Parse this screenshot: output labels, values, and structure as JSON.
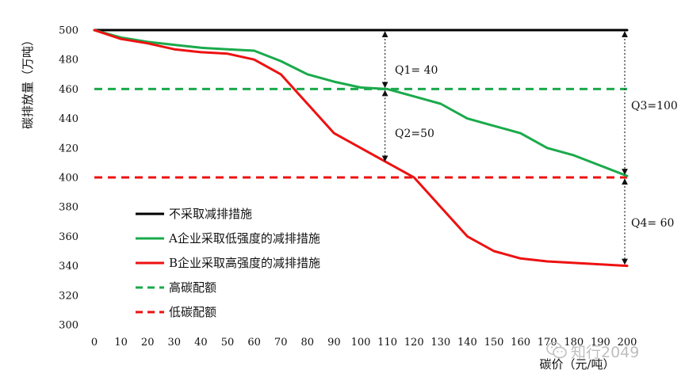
{
  "chart_data": {
    "type": "line",
    "xlabel": "碳价（元/吨）",
    "ylabel": "碳排放量（万吨）",
    "x": [
      0,
      10,
      20,
      30,
      40,
      50,
      60,
      70,
      80,
      90,
      100,
      110,
      120,
      130,
      140,
      150,
      160,
      170,
      180,
      190,
      200
    ],
    "xlim": [
      0,
      200
    ],
    "ylim": [
      300,
      500
    ],
    "yticks": [
      300,
      320,
      340,
      360,
      380,
      400,
      420,
      440,
      460,
      480,
      500
    ],
    "grid": false,
    "legend_position": "lower-left",
    "series": [
      {
        "name": "不采取减排措施",
        "color": "#000000",
        "dash": false,
        "values": [
          500,
          500,
          500,
          500,
          500,
          500,
          500,
          500,
          500,
          500,
          500,
          500,
          500,
          500,
          500,
          500,
          500,
          500,
          500,
          500,
          500
        ]
      },
      {
        "name": "A企业采取低强度的减排措施",
        "color": "#1aaa4b",
        "dash": false,
        "values": [
          500,
          495,
          492,
          490,
          488,
          487,
          486,
          479,
          470,
          465,
          461,
          460,
          455,
          450,
          440,
          435,
          430,
          420,
          415,
          408,
          401
        ]
      },
      {
        "name": "B企业采取高强度的减排措施",
        "color": "#ee1111",
        "dash": false,
        "values": [
          500,
          494,
          491,
          487,
          485,
          484,
          480,
          470,
          450,
          430,
          420,
          410,
          400,
          380,
          360,
          350,
          345,
          343,
          342,
          341,
          340
        ]
      },
      {
        "name": "高碳配额",
        "color": "#1aaa4b",
        "dash": true,
        "values": [
          460,
          460,
          460,
          460,
          460,
          460,
          460,
          460,
          460,
          460,
          460,
          460,
          460,
          460,
          460,
          460,
          460,
          460,
          460,
          460,
          460
        ]
      },
      {
        "name": "低碳配额",
        "color": "#ee1111",
        "dash": true,
        "values": [
          400,
          400,
          400,
          400,
          400,
          400,
          400,
          400,
          400,
          400,
          400,
          400,
          400,
          400,
          400,
          400,
          400,
          400,
          400,
          400,
          400
        ]
      }
    ],
    "annotations": [
      {
        "label": "Q1= 40",
        "x": 110,
        "y_from": 500,
        "y_to": 460
      },
      {
        "label": "Q2=50",
        "x": 110,
        "y_from": 460,
        "y_to": 410
      },
      {
        "label": "Q3=100",
        "x": 200,
        "y_from": 500,
        "y_to": 401
      },
      {
        "label": "Q4= 60",
        "x": 200,
        "y_from": 400,
        "y_to": 340
      }
    ]
  },
  "watermark": {
    "text": "知行2049",
    "icon": "wechat-icon"
  }
}
